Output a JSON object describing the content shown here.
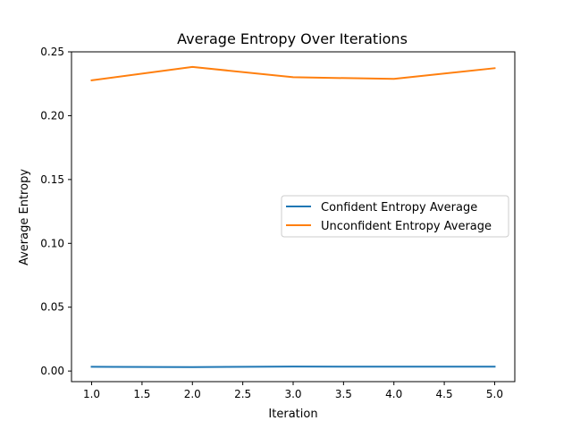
{
  "chart_data": {
    "type": "line",
    "title": "Average Entropy Over Iterations",
    "xlabel": "Iteration",
    "ylabel": "Average Entropy",
    "xlim": [
      0.8,
      5.2
    ],
    "ylim": [
      -0.0083,
      0.25
    ],
    "xticks": [
      1.0,
      1.5,
      2.0,
      2.5,
      3.0,
      3.5,
      4.0,
      4.5,
      5.0
    ],
    "xtick_labels": [
      "1.0",
      "1.5",
      "2.0",
      "2.5",
      "3.0",
      "3.5",
      "4.0",
      "4.5",
      "5.0"
    ],
    "yticks": [
      0.0,
      0.05,
      0.1,
      0.15,
      0.2,
      0.25
    ],
    "ytick_labels": [
      "0.00",
      "0.05",
      "0.10",
      "0.15",
      "0.20",
      "0.25"
    ],
    "grid": false,
    "legend_position": "center-right",
    "series": [
      {
        "name": "Confident Entropy Average",
        "color": "#1f77b4",
        "x": [
          1,
          2,
          3,
          4,
          5
        ],
        "values": [
          0.0033,
          0.0031,
          0.0035,
          0.0034,
          0.0034
        ]
      },
      {
        "name": "Unconfident Entropy Average",
        "color": "#ff7f0e",
        "x": [
          1,
          2,
          3,
          4,
          5
        ],
        "values": [
          0.2277,
          0.2382,
          0.2301,
          0.2288,
          0.2372
        ]
      }
    ]
  }
}
